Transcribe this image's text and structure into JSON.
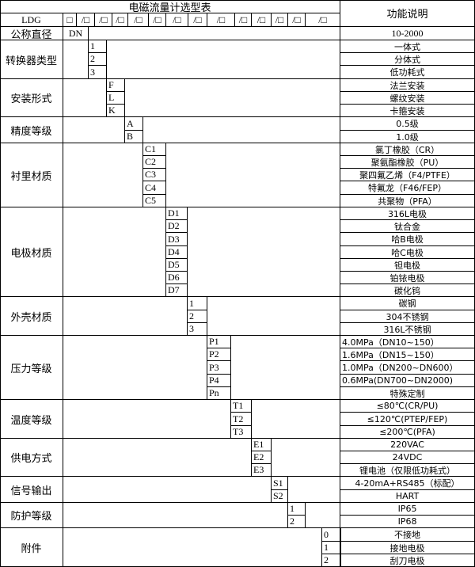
{
  "title": "电磁流量计选型表",
  "function_header": "功能说明",
  "model_row": {
    "prefix": "LDG",
    "codes": [
      "□",
      "/□",
      "/□",
      "/□",
      "/□",
      "/□",
      "/□",
      "/□",
      "/□",
      "/□",
      "/□",
      "/□",
      "/□",
      "/□"
    ]
  },
  "diameter_row": {
    "label": "公称直径",
    "code": "DN",
    "desc": "10-2000"
  },
  "groups": [
    {
      "label": "转换器类型",
      "options": [
        {
          "code": "1",
          "desc": "一体式"
        },
        {
          "code": "2",
          "desc": "分体式"
        },
        {
          "code": "3",
          "desc": "低功耗式"
        }
      ]
    },
    {
      "label": "安装形式",
      "options": [
        {
          "code": "F",
          "desc": "法兰安装"
        },
        {
          "code": "L",
          "desc": "螺纹安装"
        },
        {
          "code": "K",
          "desc": "卡箍安装"
        }
      ]
    },
    {
      "label": "精度等级",
      "options": [
        {
          "code": "A",
          "desc": "0.5级"
        },
        {
          "code": "B",
          "desc": "1.0级"
        }
      ]
    },
    {
      "label": "衬里材质",
      "options": [
        {
          "code": "C1",
          "desc": "氯丁橡胶（CR）"
        },
        {
          "code": "C2",
          "desc": "聚氨酯橡胶（PU）"
        },
        {
          "code": "C3",
          "desc": "聚四氟乙烯（F4/PTFE）"
        },
        {
          "code": "C4",
          "desc": "特氟龙（F46/FEP）"
        },
        {
          "code": "C5",
          "desc": "共聚物（PFA）"
        }
      ]
    },
    {
      "label": "电极材质",
      "options": [
        {
          "code": "D1",
          "desc": "316L电极"
        },
        {
          "code": "D2",
          "desc": "钛合金"
        },
        {
          "code": "D3",
          "desc": "哈B电极"
        },
        {
          "code": "D4",
          "desc": "哈C电极"
        },
        {
          "code": "D5",
          "desc": "钽电极"
        },
        {
          "code": "D6",
          "desc": "铂铱电极"
        },
        {
          "code": "D7",
          "desc": "碳化钨"
        }
      ]
    },
    {
      "label": "外壳材质",
      "options": [
        {
          "code": "1",
          "desc": "碳钢"
        },
        {
          "code": "2",
          "desc": "304不锈钢"
        },
        {
          "code": "3",
          "desc": "316L不锈钢"
        }
      ]
    },
    {
      "label": "压力等级",
      "options": [
        {
          "code": "P1",
          "desc": "4.0MPa（DN10~150）"
        },
        {
          "code": "P2",
          "desc": "1.6MPa（DN15~150）"
        },
        {
          "code": "P3",
          "desc": "1.0MPa（DN200~DN600）"
        },
        {
          "code": "P4",
          "desc": "0.6MPa(DN700~DN2000)"
        },
        {
          "code": "Pn",
          "desc": "特殊定制"
        }
      ]
    },
    {
      "label": "温度等级",
      "options": [
        {
          "code": "T1",
          "desc": "≤80℃(CR/PU)"
        },
        {
          "code": "T2",
          "desc": "≤120℃(PTEP/FEP)"
        },
        {
          "code": "T3",
          "desc": "≤200℃(PFA)"
        }
      ]
    },
    {
      "label": "供电方式",
      "options": [
        {
          "code": "E1",
          "desc": "220VAC"
        },
        {
          "code": "E2",
          "desc": "24VDC"
        },
        {
          "code": "E3",
          "desc": "锂电池（仅限低功耗式）"
        }
      ]
    },
    {
      "label": "信号输出",
      "options": [
        {
          "code": "S1",
          "desc": "4-20mA+RS485（标配）"
        },
        {
          "code": "S2",
          "desc": "HART"
        }
      ]
    },
    {
      "label": "防护等级",
      "options": [
        {
          "code": "1",
          "desc": "IP65"
        },
        {
          "code": "2",
          "desc": "IP68"
        }
      ]
    },
    {
      "label": "附件",
      "options": [
        {
          "code": "0",
          "desc": "不接地"
        },
        {
          "code": "1",
          "desc": "接地电极"
        },
        {
          "code": "2",
          "desc": "刮刀电极"
        }
      ]
    }
  ]
}
